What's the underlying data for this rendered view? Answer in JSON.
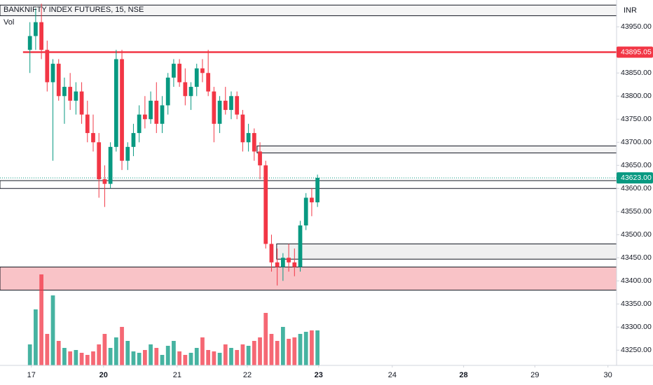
{
  "chart_data": {
    "type": "candlestick",
    "title": "BANKNIFTY INDEX FUTURES, 15, NSE",
    "subtitle": "Vol",
    "currency": "INR",
    "up_color": "#089981",
    "down_color": "#f23645",
    "xlim": [
      -5.2,
      102
    ],
    "ylim": [
      43217,
      44008
    ],
    "xticks": [
      {
        "value": 0.25,
        "label": "17"
      },
      {
        "value": 12.8,
        "label": "20"
      },
      {
        "value": 25.6,
        "label": "21"
      },
      {
        "value": 37.8,
        "label": "22"
      },
      {
        "value": 50.2,
        "label": "23"
      },
      {
        "value": 63,
        "label": "24"
      },
      {
        "value": 75.4,
        "label": "28"
      },
      {
        "value": 87.8,
        "label": "29"
      },
      {
        "value": 100.5,
        "label": "30"
      }
    ],
    "yticks": [
      {
        "value": 43250,
        "label": "43250.00"
      },
      {
        "value": 43300,
        "label": "43300.00"
      },
      {
        "value": 43350,
        "label": "43350.00"
      },
      {
        "value": 43400,
        "label": "43400.00"
      },
      {
        "value": 43450,
        "label": "43450.00"
      },
      {
        "value": 43500,
        "label": "43500.00"
      },
      {
        "value": 43550,
        "label": "43550.00"
      },
      {
        "value": 43600,
        "label": "43600.00"
      },
      {
        "value": 43650,
        "label": "43650.00"
      },
      {
        "value": 43700,
        "label": "43700.00"
      },
      {
        "value": 43750,
        "label": "43750.00"
      },
      {
        "value": 43800,
        "label": "43800.00"
      },
      {
        "value": 43850,
        "label": "43850.00"
      },
      {
        "value": 43950,
        "label": "43950.00"
      }
    ],
    "candles": [
      [
        43900,
        43960,
        43850,
        43930
      ],
      [
        43930,
        43990,
        43900,
        43960
      ],
      [
        43960,
        44000,
        43880,
        43900
      ],
      [
        43900,
        43920,
        43810,
        43830
      ],
      [
        43830,
        43880,
        43660,
        43870
      ],
      [
        43870,
        43880,
        43790,
        43800
      ],
      [
        43800,
        43840,
        43740,
        43820
      ],
      [
        43820,
        43850,
        43770,
        43790
      ],
      [
        43790,
        43830,
        43760,
        43810
      ],
      [
        43810,
        43830,
        43740,
        43760
      ],
      [
        43760,
        43790,
        43700,
        43720
      ],
      [
        43720,
        43760,
        43680,
        43700
      ],
      [
        43700,
        43720,
        43580,
        43620
      ],
      [
        43620,
        43650,
        43560,
        43610
      ],
      [
        43610,
        43700,
        43600,
        43690
      ],
      [
        43690,
        43900,
        43680,
        43880
      ],
      [
        43880,
        43900,
        43640,
        43660
      ],
      [
        43660,
        43700,
        43640,
        43690
      ],
      [
        43690,
        43740,
        43670,
        43720
      ],
      [
        43720,
        43780,
        43700,
        43760
      ],
      [
        43760,
        43800,
        43730,
        43750
      ],
      [
        43750,
        43810,
        43740,
        43790
      ],
      [
        43790,
        43830,
        43720,
        43740
      ],
      [
        43740,
        43800,
        43720,
        43780
      ],
      [
        43780,
        43850,
        43760,
        43840
      ],
      [
        43840,
        43880,
        43820,
        43870
      ],
      [
        43870,
        43880,
        43820,
        43830
      ],
      [
        43830,
        43860,
        43780,
        43800
      ],
      [
        43800,
        43830,
        43770,
        43820
      ],
      [
        43820,
        43870,
        43800,
        43860
      ],
      [
        43860,
        43880,
        43830,
        43850
      ],
      [
        43850,
        43900,
        43800,
        43810
      ],
      [
        43810,
        43820,
        43700,
        43740
      ],
      [
        43740,
        43800,
        43720,
        43790
      ],
      [
        43790,
        43820,
        43760,
        43770
      ],
      [
        43770,
        43810,
        43750,
        43800
      ],
      [
        43800,
        43810,
        43750,
        43760
      ],
      [
        43760,
        43770,
        43680,
        43700
      ],
      [
        43700,
        43740,
        43680,
        43720
      ],
      [
        43720,
        43730,
        43660,
        43680
      ],
      [
        43680,
        43700,
        43620,
        43650
      ],
      [
        43650,
        43660,
        43470,
        43480
      ],
      [
        43480,
        43500,
        43420,
        43440
      ],
      [
        43440,
        43470,
        43390,
        43430
      ],
      [
        43430,
        43460,
        43400,
        43450
      ],
      [
        43450,
        43480,
        43420,
        43440
      ],
      [
        43440,
        43470,
        43410,
        43430
      ],
      [
        43430,
        43530,
        43420,
        43520
      ],
      [
        43520,
        43590,
        43510,
        43580
      ],
      [
        43580,
        43600,
        43540,
        43570
      ],
      [
        43570,
        43630,
        43560,
        43623
      ]
    ],
    "volume": [
      30,
      80,
      130,
      45,
      100,
      35,
      25,
      20,
      22,
      18,
      15,
      20,
      30,
      45,
      25,
      40,
      55,
      35,
      20,
      18,
      22,
      30,
      25,
      15,
      28,
      35,
      20,
      15,
      18,
      25,
      40,
      22,
      20,
      18,
      30,
      25,
      22,
      30,
      28,
      35,
      40,
      75,
      45,
      35,
      55,
      38,
      40,
      45,
      48,
      50,
      50
    ],
    "levels": [
      {
        "value": 43895.05,
        "label": "43895.05",
        "color": "#f23645",
        "from": -1.2
      },
      {
        "value": 43623,
        "label": "43623.00",
        "color": "#089981",
        "from": -5.2
      }
    ],
    "zones": [
      {
        "top": 43997,
        "bottom": 43974,
        "from": -5.2,
        "fill": "#f5f5f5"
      },
      {
        "top": 43692,
        "bottom": 43677,
        "from": 39.5,
        "fill": "#f5f5f5"
      },
      {
        "top": 43617,
        "bottom": 43600,
        "from": -5.2,
        "fill": "#ffffff"
      },
      {
        "top": 43480,
        "bottom": 43447,
        "from": 42.9,
        "fill": "#f0f0f0"
      },
      {
        "top": 43430,
        "bottom": 43380,
        "from": -5.2,
        "fill": "#f9c3c7"
      }
    ]
  }
}
